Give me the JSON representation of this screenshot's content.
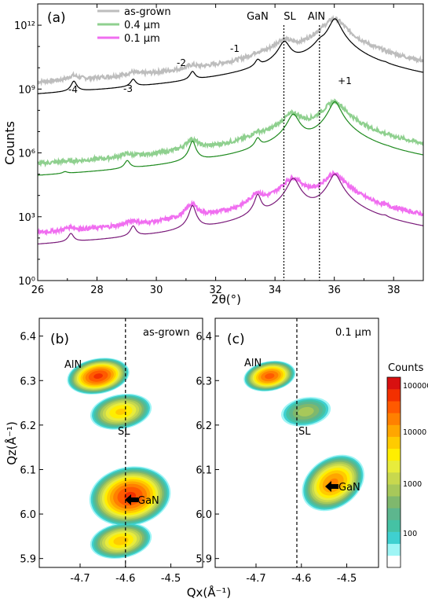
{
  "figure": {
    "panel_a": {
      "label": "(a)",
      "ylabel": "Counts",
      "xlabel": "2θ(°)",
      "xlim": [
        26,
        39
      ],
      "xticks": [
        "26",
        "28",
        "30",
        "32",
        "34",
        "36",
        "38"
      ],
      "ytick_labels": [
        "10⁰",
        "10³",
        "10⁶",
        "10⁹",
        "10¹²"
      ],
      "legend": [
        "as-grown",
        "0.4 µm",
        "0.1 µm"
      ],
      "legend_colors": [
        "#bdbdbd",
        "#8fd08f",
        "#f06ef0"
      ],
      "sim_colors": [
        "#000000",
        "#1e8a1e",
        "#7a1a7a"
      ],
      "peak_labels": [
        "-4",
        "-3",
        "-2",
        "-1",
        "+1"
      ],
      "line_labels": [
        "GaN",
        "SL",
        "AlN"
      ]
    },
    "panel_b": {
      "label": "(b)",
      "title": "as-grown",
      "labels": [
        "AlN",
        "SL",
        "GaN"
      ]
    },
    "panel_c": {
      "label": "(c)",
      "title": "0.1 µm",
      "labels": [
        "AlN",
        "SL",
        "GaN"
      ]
    },
    "map_axes": {
      "xlabel": "Qx(Å⁻¹)",
      "ylabel": "Qz(Å⁻¹)",
      "xticks": [
        "-4.7",
        "-4.6",
        "-4.5"
      ],
      "yticks": [
        "6.4",
        "6.3",
        "6.2",
        "6.1",
        "6.0",
        "5.9"
      ]
    },
    "colorbar": {
      "title": "Counts",
      "ticks": [
        "100000",
        "10000",
        "1000",
        "100"
      ],
      "colors": [
        "#ffffff",
        "#9ff5f5",
        "#3fd0d0",
        "#45c2a4",
        "#5db68e",
        "#7fb86d",
        "#a7c85a",
        "#c8d84e",
        "#e8ec3c",
        "#ffee00",
        "#ffcb00",
        "#ffa600",
        "#ff8000",
        "#ff5a00",
        "#f33000",
        "#d81010"
      ]
    }
  },
  "chart_data": [
    {
      "type": "line",
      "title": "(a)",
      "xlabel": "2θ(°)",
      "ylabel": "Counts",
      "xlim": [
        26,
        39
      ],
      "yscale": "log",
      "ylim_decades": [
        0,
        13
      ],
      "series": [
        {
          "name": "as-grown",
          "offset_decades": 6.7,
          "peaks": [
            {
              "x": 27.2,
              "log_height": 2.5
            },
            {
              "x": 29.2,
              "log_height": 2.5
            },
            {
              "x": 31.2,
              "log_height": 2.9
            },
            {
              "x": 33.4,
              "log_height": 3.4
            },
            {
              "x": 34.3,
              "log_height": 4.5
            },
            {
              "x": 35.5,
              "log_height": 4.2
            },
            {
              "x": 36.0,
              "log_height": 5.6
            },
            {
              "x": 37.7,
              "log_height": 2.4
            }
          ]
        },
        {
          "name": "0.4 µm",
          "offset_decades": 3.2,
          "peaks": [
            {
              "x": 26.9,
              "log_height": 1.2
            },
            {
              "x": 29.0,
              "log_height": 2.2
            },
            {
              "x": 31.2,
              "log_height": 3.3
            },
            {
              "x": 33.4,
              "log_height": 3.3
            },
            {
              "x": 34.6,
              "log_height": 4.6
            },
            {
              "x": 36.0,
              "log_height": 5.2
            },
            {
              "x": 37.8,
              "log_height": 1.6
            }
          ]
        },
        {
          "name": "0.1 µm",
          "offset_decades": 0.3,
          "peaks": [
            {
              "x": 27.1,
              "log_height": 1.7
            },
            {
              "x": 29.2,
              "log_height": 2.1
            },
            {
              "x": 31.2,
              "log_height": 3.2
            },
            {
              "x": 33.4,
              "log_height": 3.7
            },
            {
              "x": 34.6,
              "log_height": 4.5
            },
            {
              "x": 36.0,
              "log_height": 4.7
            },
            {
              "x": 37.7,
              "log_height": 1.9
            }
          ]
        }
      ],
      "vertical_lines": [
        {
          "x": 34.3,
          "label": "GaN"
        },
        {
          "x": 35.5,
          "label": "SL"
        }
      ]
    },
    {
      "type": "heatmap",
      "title": "(b) as-grown",
      "xlabel": "Qx(Å⁻¹)",
      "ylabel": "Qz(Å⁻¹)",
      "xlim": [
        -4.79,
        -4.43
      ],
      "ylim": [
        5.88,
        6.44
      ],
      "vertical_line_x": -4.6,
      "blobs": [
        {
          "label": "AlN",
          "qx": -4.66,
          "qz": 6.31,
          "log_counts": 5.0
        },
        {
          "label": "SL",
          "qx": -4.61,
          "qz": 6.23,
          "log_counts": 3.6
        },
        {
          "label": "GaN",
          "qx": -4.59,
          "qz": 6.04,
          "log_counts": 5.0
        },
        {
          "label": "",
          "qx": -4.61,
          "qz": 5.94,
          "log_counts": 3.7
        }
      ]
    },
    {
      "type": "heatmap",
      "title": "(c) 0.1 µm",
      "xlabel": "Qx(Å⁻¹)",
      "ylabel": "Qz(Å⁻¹)",
      "xlim": [
        -4.79,
        -4.43
      ],
      "ylim": [
        5.88,
        6.44
      ],
      "vertical_line_x": -4.61,
      "blobs": [
        {
          "label": "AlN",
          "qx": -4.67,
          "qz": 6.31,
          "log_counts": 4.7
        },
        {
          "label": "SL",
          "qx": -4.59,
          "qz": 6.23,
          "log_counts": 2.3
        },
        {
          "label": "GaN",
          "qx": -4.53,
          "qz": 6.07,
          "log_counts": 4.3
        }
      ]
    }
  ]
}
